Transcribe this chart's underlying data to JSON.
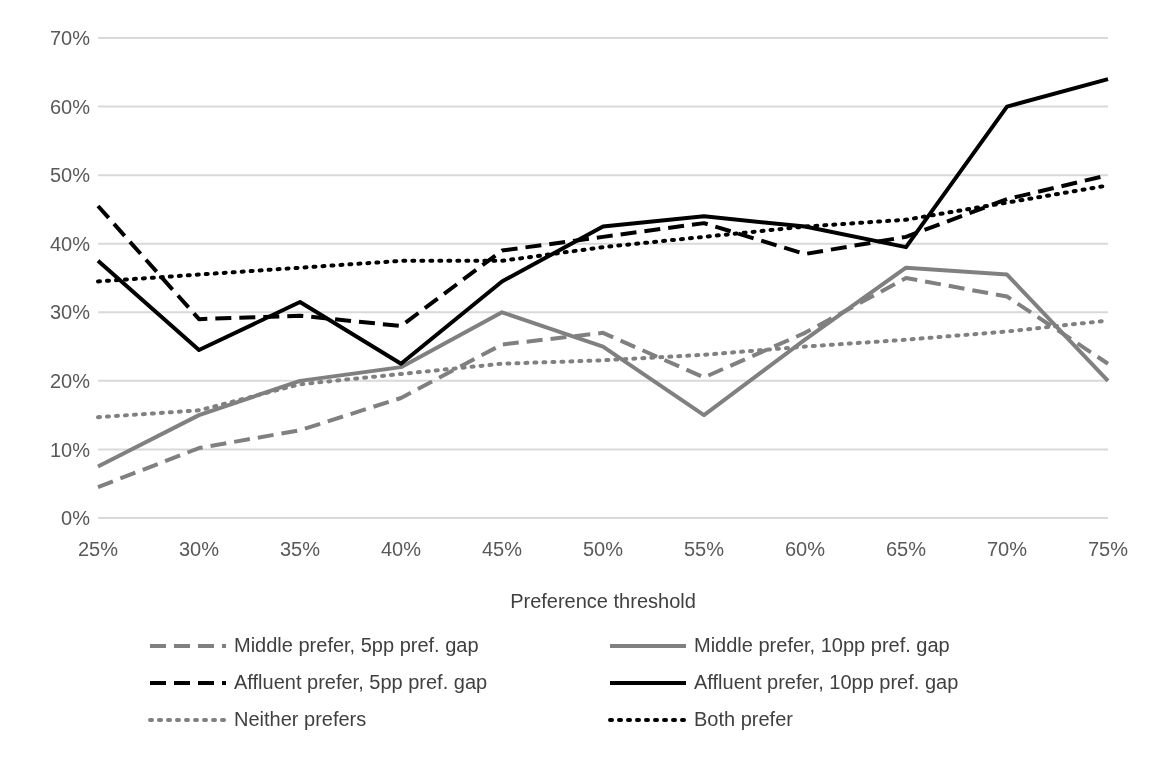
{
  "chart_data": {
    "type": "line",
    "xlabel": "Preference threshold",
    "categories": [
      "25%",
      "30%",
      "35%",
      "40%",
      "45%",
      "50%",
      "55%",
      "60%",
      "65%",
      "70%",
      "75%"
    ],
    "series": [
      {
        "name": "Middle prefer, 5pp pref. gap",
        "color": "#808080",
        "line_style": "dashed",
        "values": [
          4.5,
          10.2,
          12.8,
          17.5,
          25.3,
          27,
          20.5,
          27,
          35,
          32.3,
          22.5
        ]
      },
      {
        "name": "Middle prefer, 10pp pref. gap",
        "color": "#808080",
        "line_style": "solid",
        "values": [
          7.5,
          15,
          20,
          22,
          30,
          25,
          15,
          26,
          36.5,
          35.5,
          20
        ]
      },
      {
        "name": "Affluent prefer, 5pp pref. gap",
        "color": "#000000",
        "line_style": "dashed",
        "values": [
          45.5,
          29,
          29.5,
          28,
          39,
          41,
          43,
          38.5,
          41,
          46.5,
          50
        ]
      },
      {
        "name": "Affluent prefer, 10pp pref. gap",
        "color": "#000000",
        "line_style": "solid",
        "values": [
          37.5,
          24.5,
          31.5,
          22.5,
          34.5,
          42.5,
          44,
          42.5,
          39.5,
          60,
          64
        ]
      },
      {
        "name": "Neither prefers",
        "color": "#808080",
        "line_style": "dotted",
        "values": [
          14.7,
          15.7,
          19.5,
          21,
          22.5,
          23,
          23.8,
          25,
          26,
          27.2,
          28.8
        ]
      },
      {
        "name": "Both prefer",
        "color": "#000000",
        "line_style": "dotted",
        "values": [
          34.5,
          35.5,
          36.5,
          37.5,
          37.5,
          39.5,
          41,
          42.5,
          43.5,
          46,
          48.5
        ]
      }
    ],
    "ylim": [
      0,
      70
    ],
    "yticks": [
      {
        "value": 0,
        "label": "0%"
      },
      {
        "value": 10,
        "label": "10%"
      },
      {
        "value": 20,
        "label": "20%"
      },
      {
        "value": 30,
        "label": "30%"
      },
      {
        "value": 40,
        "label": "40%"
      },
      {
        "value": 50,
        "label": "50%"
      },
      {
        "value": 60,
        "label": "60%"
      },
      {
        "value": 70,
        "label": "70%"
      }
    ],
    "grid": "y",
    "legend": "bottom",
    "marker": "none"
  }
}
